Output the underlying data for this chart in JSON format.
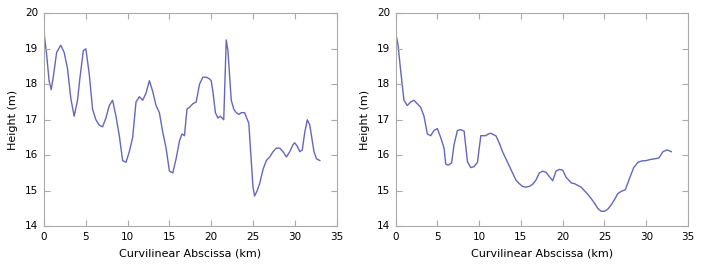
{
  "line_color": "#6666bb",
  "line_width": 1.0,
  "xlim": [
    0,
    35
  ],
  "ylim": [
    14,
    20
  ],
  "xlabel": "Curvilinear Abscissa (km)",
  "ylabel": "Height (m)",
  "xticks": [
    0,
    5,
    10,
    15,
    20,
    25,
    30,
    35
  ],
  "yticks": [
    14,
    15,
    16,
    17,
    18,
    19,
    20
  ],
  "profile1_x": [
    0,
    0.3,
    0.6,
    0.85,
    1.1,
    1.5,
    2.0,
    2.4,
    2.8,
    3.2,
    3.6,
    4.0,
    4.3,
    4.7,
    5.0,
    5.4,
    5.8,
    6.2,
    6.6,
    7.0,
    7.4,
    7.8,
    8.2,
    8.6,
    9.0,
    9.4,
    9.8,
    10.2,
    10.6,
    11.0,
    11.4,
    11.8,
    12.2,
    12.6,
    13.0,
    13.4,
    13.8,
    14.2,
    14.6,
    15.0,
    15.4,
    15.8,
    16.2,
    16.5,
    16.8,
    17.1,
    17.4,
    17.8,
    18.2,
    18.6,
    19.0,
    19.4,
    19.8,
    20.0,
    20.2,
    20.5,
    20.8,
    21.1,
    21.5,
    21.8,
    22.0,
    22.2,
    22.4,
    22.7,
    23.0,
    23.3,
    23.6,
    24.0,
    24.5,
    25.0,
    25.2,
    25.5,
    25.8,
    26.2,
    26.6,
    27.0,
    27.4,
    27.8,
    28.2,
    28.6,
    29.0,
    29.4,
    29.8,
    30.0,
    30.3,
    30.6,
    30.9,
    31.2,
    31.5,
    31.8,
    32.0,
    32.3,
    32.6,
    33.0
  ],
  "profile1_y": [
    19.45,
    18.85,
    18.1,
    17.85,
    18.2,
    18.9,
    19.1,
    18.9,
    18.45,
    17.6,
    17.1,
    17.55,
    18.2,
    18.95,
    19.0,
    18.3,
    17.3,
    17.0,
    16.85,
    16.8,
    17.05,
    17.4,
    17.55,
    17.1,
    16.55,
    15.85,
    15.8,
    16.1,
    16.5,
    17.5,
    17.65,
    17.55,
    17.75,
    18.1,
    17.8,
    17.4,
    17.2,
    16.65,
    16.2,
    15.55,
    15.5,
    15.9,
    16.4,
    16.6,
    16.55,
    17.3,
    17.35,
    17.45,
    17.5,
    18.0,
    18.2,
    18.2,
    18.15,
    18.1,
    17.8,
    17.2,
    17.05,
    17.1,
    17.0,
    19.25,
    18.95,
    18.25,
    17.55,
    17.3,
    17.2,
    17.15,
    17.2,
    17.2,
    16.9,
    15.1,
    14.85,
    15.0,
    15.2,
    15.6,
    15.85,
    15.95,
    16.1,
    16.2,
    16.2,
    16.1,
    15.95,
    16.1,
    16.3,
    16.35,
    16.25,
    16.1,
    16.15,
    16.65,
    17.0,
    16.85,
    16.55,
    16.1,
    15.9,
    15.85
  ],
  "profile2_x": [
    0,
    0.12,
    0.3,
    0.6,
    1.0,
    1.4,
    1.8,
    2.2,
    2.6,
    3.0,
    3.4,
    3.8,
    4.2,
    4.6,
    5.0,
    5.4,
    5.8,
    6.0,
    6.3,
    6.7,
    7.0,
    7.4,
    7.8,
    8.2,
    8.6,
    9.0,
    9.4,
    9.8,
    10.2,
    10.5,
    10.8,
    11.1,
    11.4,
    11.7,
    12.0,
    12.4,
    12.8,
    13.2,
    13.6,
    14.0,
    14.4,
    14.8,
    15.2,
    15.6,
    16.0,
    16.4,
    16.8,
    17.2,
    17.6,
    18.0,
    18.4,
    18.8,
    19.2,
    19.6,
    20.0,
    20.4,
    20.8,
    21.0,
    21.4,
    21.8,
    22.2,
    22.6,
    23.0,
    23.4,
    23.8,
    24.2,
    24.6,
    25.0,
    25.4,
    25.8,
    26.2,
    26.6,
    27.0,
    27.5,
    28.0,
    28.5,
    29.0,
    29.5,
    30.0,
    30.5,
    31.0,
    31.5,
    32.0,
    32.5,
    33.0
  ],
  "profile2_y": [
    19.35,
    19.32,
    19.1,
    18.4,
    17.55,
    17.4,
    17.5,
    17.55,
    17.45,
    17.35,
    17.1,
    16.6,
    16.55,
    16.7,
    16.75,
    16.5,
    16.2,
    15.75,
    15.72,
    15.78,
    16.3,
    16.7,
    16.72,
    16.68,
    15.82,
    15.65,
    15.68,
    15.8,
    16.55,
    16.55,
    16.55,
    16.6,
    16.62,
    16.58,
    16.55,
    16.35,
    16.1,
    15.9,
    15.7,
    15.5,
    15.3,
    15.2,
    15.12,
    15.1,
    15.12,
    15.18,
    15.3,
    15.5,
    15.55,
    15.52,
    15.4,
    15.28,
    15.55,
    15.6,
    15.58,
    15.38,
    15.28,
    15.22,
    15.2,
    15.15,
    15.1,
    15.0,
    14.9,
    14.78,
    14.65,
    14.5,
    14.42,
    14.42,
    14.48,
    14.6,
    14.75,
    14.92,
    14.98,
    15.03,
    15.35,
    15.65,
    15.8,
    15.84,
    15.85,
    15.88,
    15.9,
    15.92,
    16.1,
    16.15,
    16.1
  ]
}
